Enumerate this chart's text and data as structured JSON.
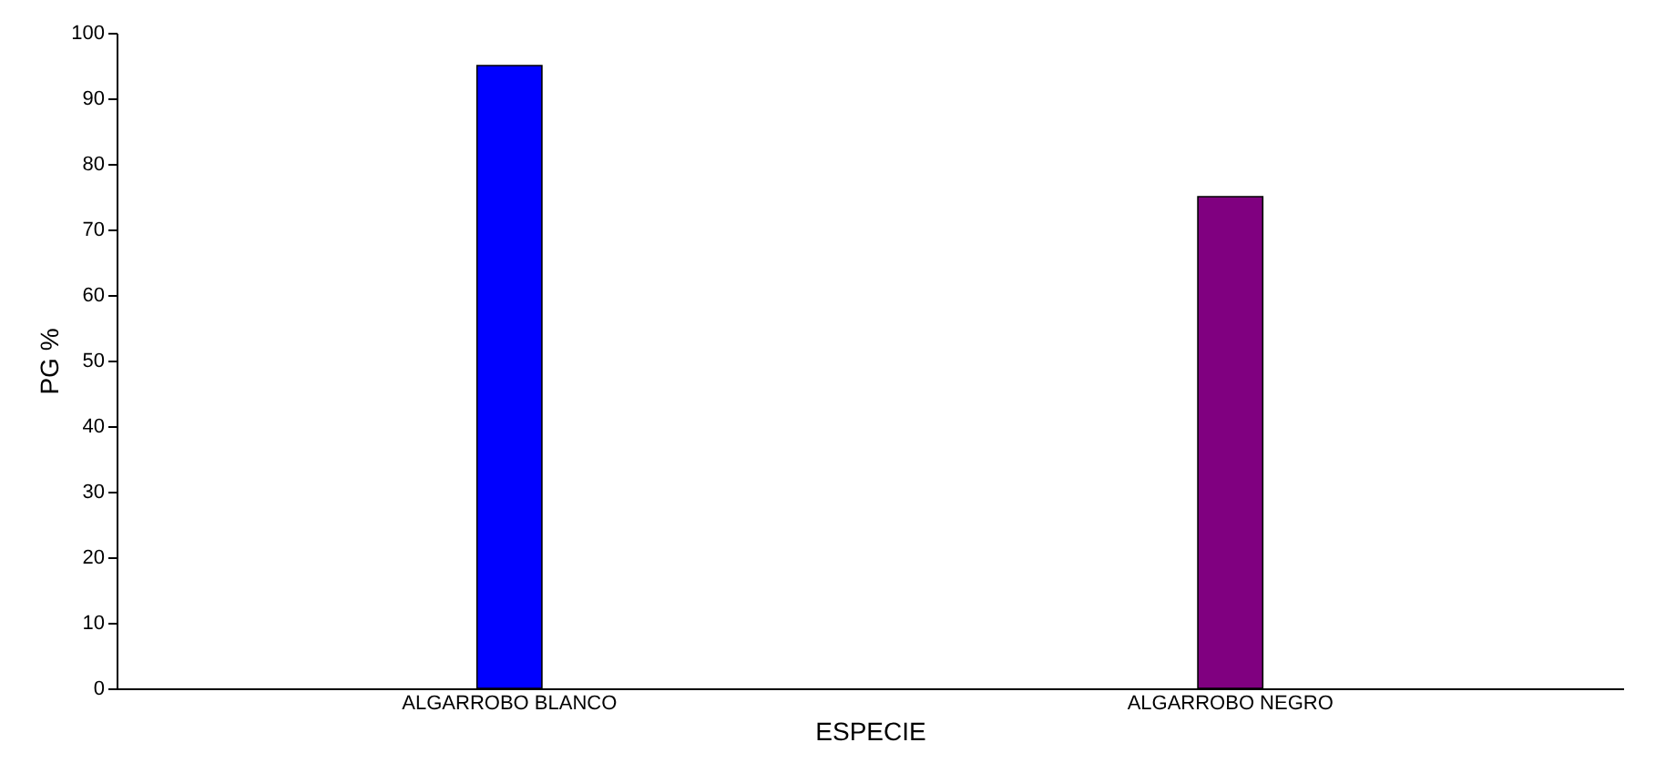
{
  "chart_data": {
    "type": "bar",
    "xlabel": "ESPECIE",
    "ylabel": "PG %",
    "categories": [
      "ALGARROBO BLANCO",
      "ALGARROBO NEGRO"
    ],
    "values": [
      95,
      75
    ],
    "colors": [
      "#0000ff",
      "#800080"
    ],
    "ylim": [
      0,
      100
    ],
    "yticks": [
      0,
      10,
      20,
      30,
      40,
      50,
      60,
      70,
      80,
      90,
      100
    ]
  }
}
